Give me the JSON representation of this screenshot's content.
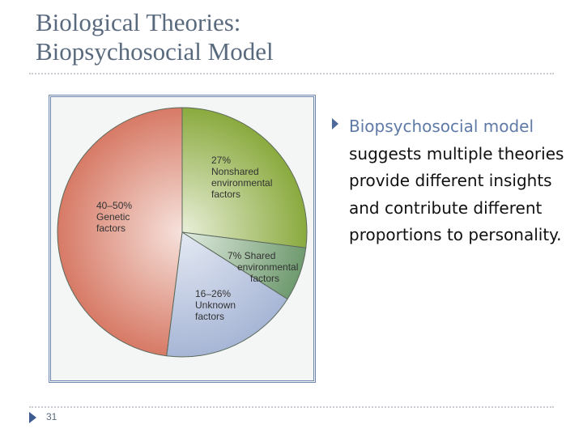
{
  "slide": {
    "title_line1": "Biological Theories:",
    "title_line2": "Biopsychosocial Model",
    "bullet_highlight": "Biopsychosocial model",
    "bullet_rest": " suggests multiple theories provide different insights and contribute different proportions to personality.",
    "page_number": "31"
  },
  "chart_data": {
    "type": "pie",
    "title": "",
    "slices": [
      {
        "label_lines": [
          "27%",
          "Nonshared",
          "environmental",
          "factors"
        ],
        "value": 27,
        "color_a": "#8aaa3e",
        "color_b": "#e9efd9"
      },
      {
        "label_lines": [
          "7% Shared",
          "environmental",
          "factors"
        ],
        "value": 7,
        "color_a": "#6f9a6f",
        "color_b": "#e2ece2"
      },
      {
        "label_lines": [
          "16–26%",
          "Unknown",
          "factors"
        ],
        "value": 18,
        "color_a": "#a7b6d6",
        "color_b": "#e4e9f3"
      },
      {
        "label_lines": [
          "40–50%",
          "Genetic",
          "factors"
        ],
        "value": 48,
        "color_a": "#d77a66",
        "color_b": "#f6e2dc"
      }
    ]
  },
  "colors": {
    "title": "#5a6a7e",
    "accent": "#5f7aa6",
    "frame": "#6f86b0"
  }
}
